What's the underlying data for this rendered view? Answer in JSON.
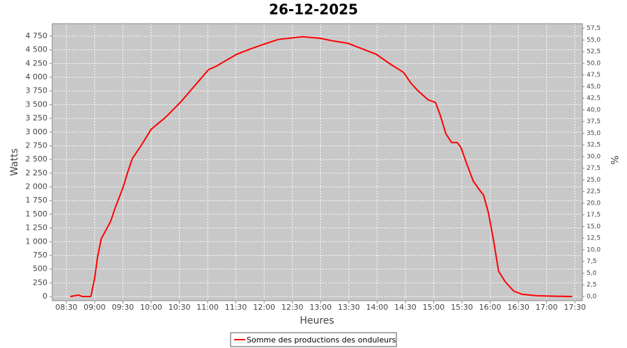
{
  "chart_data": {
    "type": "line",
    "title": "26-12-2025",
    "x_label": "Heures",
    "y_label": "Watts",
    "y2_label": "%",
    "x": [
      "08:34",
      "08:43",
      "08:47",
      "08:56",
      "09:00",
      "09:03",
      "09:07",
      "09:11",
      "09:17",
      "09:22",
      "09:30",
      "09:35",
      "09:40",
      "09:50",
      "10:00",
      "10:16",
      "10:32",
      "10:47",
      "11:01",
      "11:09",
      "11:31",
      "11:46",
      "12:01",
      "12:15",
      "12:41",
      "13:00",
      "13:14",
      "13:29",
      "13:44",
      "13:59",
      "14:14",
      "14:28",
      "14:36",
      "14:43",
      "14:54",
      "15:02",
      "15:07",
      "15:13",
      "15:19",
      "15:25",
      "15:29",
      "15:35",
      "15:42",
      "15:48",
      "15:53",
      "15:58",
      "16:03",
      "16:09",
      "16:16",
      "16:25",
      "16:34",
      "16:49",
      "17:11",
      "17:27"
    ],
    "series": [
      {
        "name": "Somme des productions des onduleurs",
        "color": "#ff0000",
        "values": [
          0,
          25,
          0,
          0,
          330,
          710,
          1050,
          1180,
          1370,
          1625,
          1980,
          2260,
          2515,
          2770,
          3050,
          3280,
          3560,
          3860,
          4140,
          4200,
          4420,
          4520,
          4610,
          4690,
          4740,
          4710,
          4660,
          4620,
          4520,
          4420,
          4240,
          4090,
          3890,
          3760,
          3590,
          3540,
          3310,
          2970,
          2810,
          2810,
          2720,
          2430,
          2110,
          1960,
          1850,
          1540,
          1090,
          460,
          270,
          100,
          40,
          15,
          5,
          0
        ]
      }
    ],
    "xlim": [
      "08:15",
      "17:38"
    ],
    "xticks": [
      "08:30",
      "09:00",
      "09:30",
      "10:00",
      "10:30",
      "11:00",
      "11:30",
      "12:00",
      "12:30",
      "13:00",
      "13:30",
      "14:00",
      "14:30",
      "15:00",
      "15:30",
      "16:00",
      "16:30",
      "17:00",
      "17:30"
    ],
    "ylim": [
      -76,
      4978
    ],
    "yticks": [
      0,
      250,
      500,
      750,
      {
        "value": 1000,
        "label": "1 000"
      },
      {
        "value": 1250,
        "label": "1 250"
      },
      {
        "value": 1500,
        "label": "1 500"
      },
      {
        "value": 1750,
        "label": "1 750"
      },
      {
        "value": 2000,
        "label": "2 000"
      },
      {
        "value": 2250,
        "label": "2 250"
      },
      {
        "value": 2500,
        "label": "2 500"
      },
      {
        "value": 2750,
        "label": "2 750"
      },
      {
        "value": 3000,
        "label": "3 000"
      },
      {
        "value": 3250,
        "label": "3 250"
      },
      {
        "value": 3500,
        "label": "3 500"
      },
      {
        "value": 3750,
        "label": "3 750"
      },
      {
        "value": 4000,
        "label": "4 000"
      },
      {
        "value": 4250,
        "label": "4 250"
      },
      {
        "value": 4500,
        "label": "4 500"
      },
      {
        "value": 4750,
        "label": "4 750"
      }
    ],
    "y2lim": [
      -0.9,
      58.5
    ],
    "y2ticks": [
      {
        "value": 0,
        "label": "0,0"
      },
      {
        "value": 2.5,
        "label": "2,5"
      },
      {
        "value": 5,
        "label": "5,0"
      },
      {
        "value": 7.5,
        "label": "7,5"
      },
      {
        "value": 10,
        "label": "10,0"
      },
      {
        "value": 12.5,
        "label": "12,5"
      },
      {
        "value": 15,
        "label": "15,0"
      },
      {
        "value": 17.5,
        "label": "17,5"
      },
      {
        "value": 20,
        "label": "20,0"
      },
      {
        "value": 22.5,
        "label": "22,5"
      },
      {
        "value": 25,
        "label": "25,0"
      },
      {
        "value": 27.5,
        "label": "27,5"
      },
      {
        "value": 30,
        "label": "30,0"
      },
      {
        "value": 32.5,
        "label": "32,5"
      },
      {
        "value": 35,
        "label": "35,0"
      },
      {
        "value": 37.5,
        "label": "37,5"
      },
      {
        "value": 40,
        "label": "40,0"
      },
      {
        "value": 42.5,
        "label": "42,5"
      },
      {
        "value": 45,
        "label": "45,0"
      },
      {
        "value": 47.5,
        "label": "47,5"
      },
      {
        "value": 50,
        "label": "50,0"
      },
      {
        "value": 52.5,
        "label": "52,5"
      },
      {
        "value": 55,
        "label": "55,0"
      },
      {
        "value": 57.5,
        "label": "57,5"
      }
    ],
    "grid": true
  }
}
